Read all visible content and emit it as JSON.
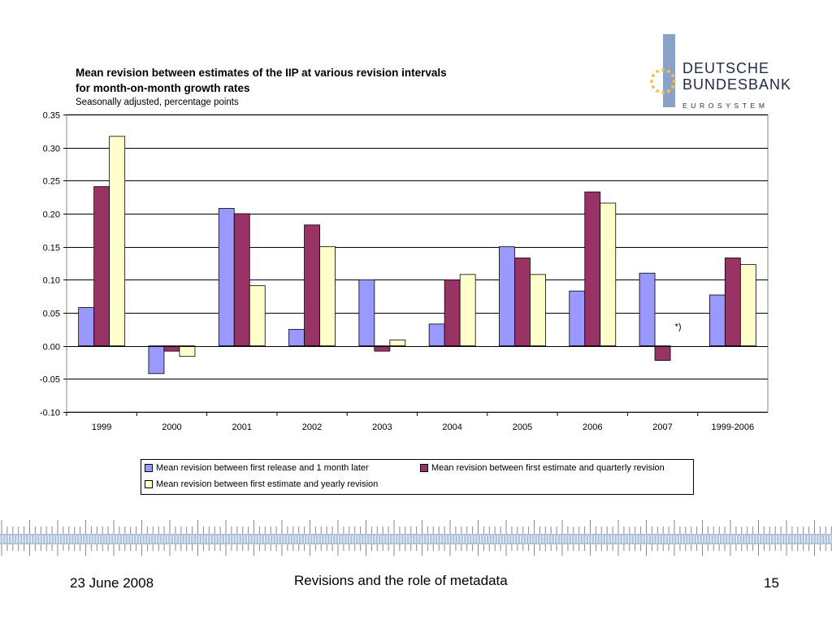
{
  "slide": {
    "date": "23 June 2008",
    "footer_title": "Revisions and the role of metadata",
    "page_number": "15"
  },
  "logo": {
    "line1": "DEUTSCHE",
    "line2": "BUNDESBANK",
    "line3": "EUROSYSTEM",
    "bar_color": "#8ba2c8",
    "star_color": "#f2c14e"
  },
  "chart_data": {
    "type": "bar",
    "title": [
      "Mean revision between estimates of the IIP at various revision intervals",
      "for month-on-month growth rates"
    ],
    "subtitle": "Seasonally adjusted, percentage points",
    "categories": [
      "1999",
      "2000",
      "2001",
      "2002",
      "2003",
      "2004",
      "2005",
      "2006",
      "2007",
      "1999-2006"
    ],
    "ylim": [
      -0.1,
      0.35
    ],
    "yticks": [
      "0.35",
      "0.30",
      "0.25",
      "0.20",
      "0.15",
      "0.10",
      "0.05",
      "0.00",
      "-0.05",
      "-0.10"
    ],
    "grid": true,
    "legend_position": "bottom",
    "series": [
      {
        "name": "Mean revision between first release and 1 month later",
        "color": "#9999ff",
        "values": [
          0.058,
          -0.042,
          0.208,
          0.025,
          0.1,
          0.033,
          0.15,
          0.083,
          0.11,
          0.077
        ]
      },
      {
        "name": "Mean revision between first estimate and quarterly revision",
        "color": "#993366",
        "values": [
          0.241,
          -0.008,
          0.2,
          0.183,
          -0.008,
          0.1,
          0.133,
          0.233,
          -0.022,
          0.133
        ]
      },
      {
        "name": "Mean revision between first estimate and yearly revision",
        "color": "#ffffcc",
        "values": [
          0.317,
          -0.016,
          0.091,
          0.15,
          0.009,
          0.108,
          0.108,
          0.216,
          null,
          0.123
        ]
      }
    ],
    "annotation": "*)"
  }
}
